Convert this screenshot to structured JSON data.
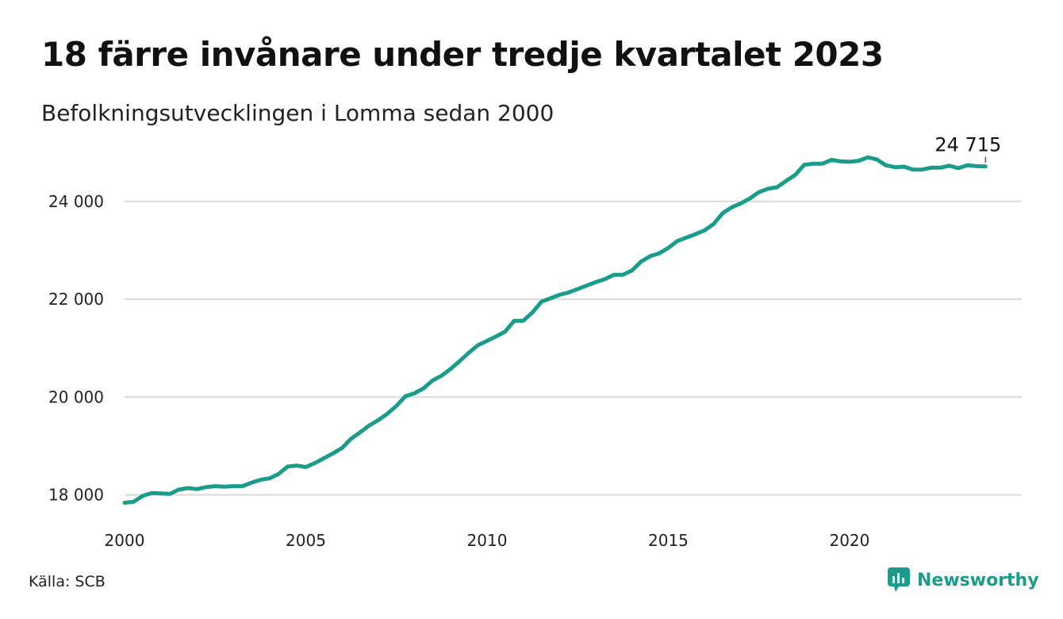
{
  "title": "18 färre invånare under tredje kvartalet 2023",
  "subtitle": "Befolkningsutvecklingen i Lomma sedan 2000",
  "source": "Källa: SCB",
  "brand": {
    "name": "Newsworthy",
    "icon": "newsworthy-logo-icon",
    "color": "#1a9c8a"
  },
  "chart_data": {
    "type": "line",
    "title": "18 färre invånare under tredje kvartalet 2023",
    "subtitle": "Befolkningsutvecklingen i Lomma sedan 2000",
    "xlabel": "",
    "ylabel": "",
    "xlim": [
      2000,
      2024.75
    ],
    "ylim": [
      17800,
      25100
    ],
    "x_ticks": [
      2000,
      2005,
      2010,
      2015,
      2020
    ],
    "x_tick_labels": [
      "2000",
      "2005",
      "2010",
      "2015",
      "2020"
    ],
    "y_ticks": [
      18000,
      20000,
      22000,
      24000
    ],
    "y_tick_labels": [
      "18 000",
      "20 000",
      "22 000",
      "24 000"
    ],
    "grid": "horizontal",
    "line_color": "#1a9c8a",
    "last_value_label": "24 715",
    "series": [
      {
        "x": [
          2000.0,
          2000.25,
          2000.5,
          2000.75,
          2001.0,
          2001.25,
          2001.5,
          2001.75,
          2002.0,
          2002.25,
          2002.5,
          2002.75,
          2003.0,
          2003.25,
          2003.5,
          2003.75,
          2004.0,
          2004.25,
          2004.5,
          2004.75,
          2005.0,
          2005.25,
          2005.5,
          2005.75,
          2006.0,
          2006.25,
          2006.5,
          2006.75,
          2007.0,
          2007.25,
          2007.5,
          2007.75,
          2008.0,
          2008.25,
          2008.5,
          2008.75,
          2009.0,
          2009.25,
          2009.5,
          2009.75,
          2010.0,
          2010.25,
          2010.5,
          2010.75,
          2011.0,
          2011.25,
          2011.5,
          2011.75,
          2012.0,
          2012.25,
          2012.5,
          2012.75,
          2013.0,
          2013.25,
          2013.5,
          2013.75,
          2014.0,
          2014.25,
          2014.5,
          2014.75,
          2015.0,
          2015.25,
          2015.5,
          2015.75,
          2016.0,
          2016.25,
          2016.5,
          2016.75,
          2017.0,
          2017.25,
          2017.5,
          2017.75,
          2018.0,
          2018.25,
          2018.5,
          2018.75,
          2019.0,
          2019.25,
          2019.5,
          2019.75,
          2020.0,
          2020.25,
          2020.5,
          2020.75,
          2021.0,
          2021.25,
          2021.5,
          2021.75,
          2022.0,
          2022.25,
          2022.5,
          2022.75,
          2023.0,
          2023.25,
          2023.5,
          2023.75
        ],
        "values": [
          17840,
          17860,
          17980,
          18040,
          18030,
          18020,
          18110,
          18140,
          18120,
          18160,
          18180,
          18170,
          18180,
          18180,
          18250,
          18310,
          18340,
          18430,
          18580,
          18600,
          18570,
          18650,
          18750,
          18850,
          18960,
          19150,
          19280,
          19420,
          19530,
          19660,
          19820,
          20020,
          20080,
          20180,
          20340,
          20440,
          20580,
          20740,
          20910,
          21060,
          21150,
          21240,
          21340,
          21560,
          21560,
          21730,
          21950,
          22020,
          22090,
          22140,
          22210,
          22280,
          22350,
          22410,
          22500,
          22500,
          22590,
          22770,
          22880,
          22940,
          23050,
          23190,
          23260,
          23330,
          23410,
          23540,
          23760,
          23880,
          23960,
          24060,
          24190,
          24260,
          24290,
          24420,
          24540,
          24750,
          24770,
          24770,
          24850,
          24820,
          24810,
          24830,
          24900,
          24860,
          24740,
          24700,
          24710,
          24650,
          24650,
          24690,
          24690,
          24730,
          24680,
          24740,
          24720,
          24715
        ]
      }
    ]
  }
}
